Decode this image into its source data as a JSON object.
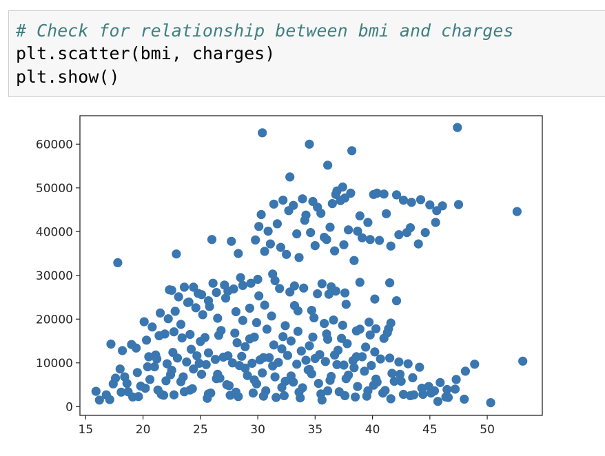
{
  "code_cell": {
    "lines": [
      "# Check for relationship between bmi and charges",
      "plt.scatter(bmi, charges)",
      "plt.show()"
    ]
  },
  "colors": {
    "marker": "#3a76af",
    "axes": "#262626"
  },
  "chart_data": {
    "type": "scatter",
    "title": "",
    "xlabel": "",
    "ylabel": "",
    "xlim": [
      14.5,
      54.8
    ],
    "ylim": [
      -2000,
      66500
    ],
    "xticks": [
      15,
      20,
      25,
      30,
      35,
      40,
      45,
      50
    ],
    "yticks": [
      0,
      10000,
      20000,
      30000,
      40000,
      50000,
      60000
    ],
    "grid": false,
    "legend": false,
    "series": [
      {
        "x": [
          30.4,
          34.5,
          47.4,
          38.2,
          36.1,
          32.8,
          37.4,
          36.9,
          37.6,
          38.1,
          36.5,
          35.2,
          31.4,
          32.2,
          32.7,
          33.1,
          33.9,
          34.2,
          34.8,
          35.5,
          36.8,
          37.2,
          38.9,
          39.6,
          40.1,
          40.4,
          41.0,
          41.2,
          42.1,
          42.7,
          43.4,
          44.2,
          45.0,
          44.6,
          45.5,
          46.1,
          47.5,
          52.6,
          30.3,
          30.9,
          31.7,
          33.4,
          34.1,
          35.8,
          36.3,
          37.9,
          39.1,
          39.8,
          40.6,
          41.6,
          42.3,
          43.0,
          43.3,
          44.0,
          45.6,
          30.1,
          29.8,
          30.6,
          31.1,
          32.0,
          32.5,
          33.6,
          34.6,
          35.0,
          36.0,
          36.7,
          37.5,
          38.4,
          38.7,
          17.8,
          22.9,
          26.0,
          27.7,
          28.3,
          33.2,
          35.6,
          36.8,
          41.5,
          42.1,
          22.5,
          23.1,
          23.9,
          24.4,
          25.1,
          25.7,
          26.4,
          27.1,
          27.9,
          28.5,
          29.4,
          30.0,
          31.3,
          31.9,
          33.2,
          34.7,
          36.2,
          37.7,
          20.1,
          20.8,
          21.5,
          22.2,
          22.8,
          23.3,
          24.0,
          24.6,
          25.2,
          25.8,
          26.5,
          27.2,
          28.1,
          28.7,
          29.3,
          29.9,
          30.6,
          31.2,
          32.4,
          33.5,
          34.9,
          35.8,
          36.6,
          37.4,
          38.9,
          39.7,
          40.3,
          41.6,
          18.2,
          19.0,
          19.4,
          20.3,
          21.1,
          21.9,
          22.6,
          23.4,
          24.2,
          25.0,
          25.7,
          26.6,
          27.4,
          28.2,
          28.9,
          29.7,
          30.5,
          31.4,
          32.1,
          32.9,
          33.8,
          34.5,
          35.4,
          36.1,
          37.0,
          37.8,
          38.6,
          39.4,
          40.2,
          41.0,
          41.4,
          17.2,
          17.6,
          18.1,
          18.6,
          19.1,
          19.8,
          20.6,
          21.3,
          22.0,
          22.7,
          23.5,
          24.3,
          25.1,
          25.9,
          26.7,
          27.5,
          28.3,
          29.1,
          29.9,
          30.7,
          31.5,
          32.3,
          33.1,
          33.9,
          34.7,
          35.5,
          36.3,
          37.1,
          37.9,
          38.7,
          39.5,
          40.3,
          41.1,
          41.9,
          42.7,
          43.5,
          44.3,
          45.1,
          45.9,
          46.6,
          47.2,
          48.1,
          48.9,
          16.2,
          16.8,
          17.4,
          18.0,
          18.7,
          19.5,
          20.2,
          21.0,
          21.8,
          22.5,
          23.3,
          24.1,
          24.9,
          25.7,
          26.5,
          27.3,
          28.1,
          28.9,
          29.7,
          30.5,
          31.3,
          32.1,
          32.9,
          33.7,
          34.5,
          35.3,
          36.1,
          36.9,
          37.7,
          38.5,
          39.3,
          40.1,
          40.9,
          41.7,
          42.5,
          43.3,
          44.1,
          44.9,
          45.7,
          46.5,
          47.3,
          48.0,
          15.9,
          17.1,
          18.4,
          19.6,
          20.4,
          21.6,
          22.4,
          23.6,
          24.4,
          25.6,
          26.4,
          27.6,
          28.4,
          29.6,
          30.4,
          31.6,
          32.4,
          33.6,
          34.4,
          35.6,
          36.4,
          37.6,
          38.4,
          39.6,
          40.4,
          41.6,
          42.4,
          43.6,
          44.4,
          45.4,
          46.4,
          50.3,
          53.1,
          20.5,
          21.2,
          22.1,
          23.0,
          23.8,
          24.7,
          25.5,
          26.3,
          27.0,
          27.8,
          28.6,
          29.5,
          30.2,
          31.0,
          31.8,
          32.6,
          33.4,
          34.2,
          35.0,
          35.9,
          36.7,
          37.5,
          38.3,
          39.1,
          39.9,
          40.7,
          41.5,
          42.3,
          43.1,
          22.3,
          23.6,
          24.8,
          26.1,
          27.4,
          28.7,
          30.1,
          31.5,
          32.8,
          34.0,
          35.2,
          36.4,
          37.6,
          38.9,
          40.2,
          21.4,
          22.7,
          24.1,
          25.4,
          26.8,
          28.0,
          29.3,
          30.8,
          32.2,
          33.5,
          34.8,
          36.0,
          37.3,
          38.6,
          39.8,
          41.3
        ],
        "y": [
          62600,
          60000,
          63800,
          58500,
          55200,
          52500,
          50200,
          49300,
          47700,
          48800,
          46400,
          45600,
          46300,
          47200,
          44800,
          46000,
          47500,
          43800,
          46900,
          44200,
          48500,
          47100,
          43600,
          42100,
          48500,
          48800,
          48600,
          44100,
          48400,
          47200,
          46700,
          47300,
          46100,
          39800,
          42100,
          45900,
          46200,
          44600,
          43900,
          40100,
          41800,
          39500,
          42600,
          38700,
          41000,
          40400,
          38600,
          38200,
          38000,
          36700,
          39300,
          39800,
          40900,
          37200,
          44800,
          41200,
          38100,
          35500,
          37200,
          36400,
          34800,
          34100,
          39800,
          36800,
          38200,
          35600,
          37000,
          33400,
          40100,
          32900,
          34900,
          38200,
          37800,
          35000,
          27600,
          28100,
          26400,
          28300,
          24200,
          26600,
          25100,
          23800,
          27300,
          25600,
          24200,
          26100,
          27800,
          26900,
          29500,
          28200,
          29100,
          30300,
          27000,
          23100,
          22000,
          25700,
          23400,
          19400,
          18200,
          21400,
          20100,
          21800,
          18800,
          23900,
          22600,
          21000,
          22900,
          20200,
          24800,
          21700,
          19700,
          22500,
          19200,
          23200,
          20700,
          18500,
          21900,
          20300,
          19000,
          19800,
          18600,
          17700,
          19300,
          17800,
          19100,
          12800,
          14200,
          13400,
          15200,
          11800,
          16600,
          12400,
          15700,
          13100,
          14900,
          12300,
          16300,
          11600,
          14600,
          13700,
          15900,
          11200,
          14100,
          13200,
          15000,
          12700,
          13900,
          11900,
          15400,
          12900,
          14400,
          11400,
          13600,
          12500,
          15600,
          17800,
          14300,
          6500,
          3300,
          5300,
          2200,
          4700,
          6200,
          3800,
          5900,
          2700,
          6800,
          4100,
          7400,
          3100,
          6500,
          4800,
          2300,
          7100,
          5200,
          3600,
          6800,
          2500,
          5600,
          4300,
          7500,
          2900,
          6000,
          3400,
          7200,
          4600,
          2400,
          6300,
          3700,
          5800,
          2800,
          6600,
          4200,
          3100,
          5500,
          2100,
          4000,
          8100,
          9700,
          1500,
          2700,
          5200,
          8600,
          3400,
          7800,
          4200,
          9100,
          2600,
          8300,
          5700,
          3800,
          9900,
          2900,
          7400,
          5000,
          3300,
          8800,
          6100,
          2400,
          9300,
          4400,
          7000,
          2000,
          8500,
          5300,
          3600,
          9600,
          6400,
          2200,
          8100,
          4900,
          3100,
          7600,
          5800,
          2500,
          9000,
          4600,
          1200,
          3900,
          6200,
          1700,
          3500,
          1600,
          6800,
          2300,
          9100,
          2800,
          7300,
          3400,
          8600,
          1900,
          6400,
          2600,
          9400,
          3100,
          7700,
          2100,
          5800,
          3300,
          8400,
          1500,
          6900,
          2500,
          8900,
          3600,
          5600,
          1800,
          7400,
          2700,
          2800,
          3600,
          2200,
          900,
          10400,
          11400,
          10900,
          9800,
          11100,
          10200,
          11600,
          9600,
          10800,
          11300,
          10000,
          11500,
          9900,
          10700,
          11200,
          10100,
          11700,
          9700,
          10600,
          11000,
          10300,
          11800,
          9500,
          10500,
          11400,
          9400,
          10900,
          11100,
          10200,
          9800,
          26700,
          27300,
          25900,
          28200,
          26400,
          27700,
          25300,
          28800,
          26200,
          27100,
          25800,
          27400,
          26000,
          28400,
          24600,
          16200,
          17100,
          16500,
          15800,
          17400,
          16800,
          15500,
          17700,
          16000,
          17200,
          15900,
          16600,
          15600,
          17300,
          16400,
          16900
        ]
      }
    ]
  }
}
